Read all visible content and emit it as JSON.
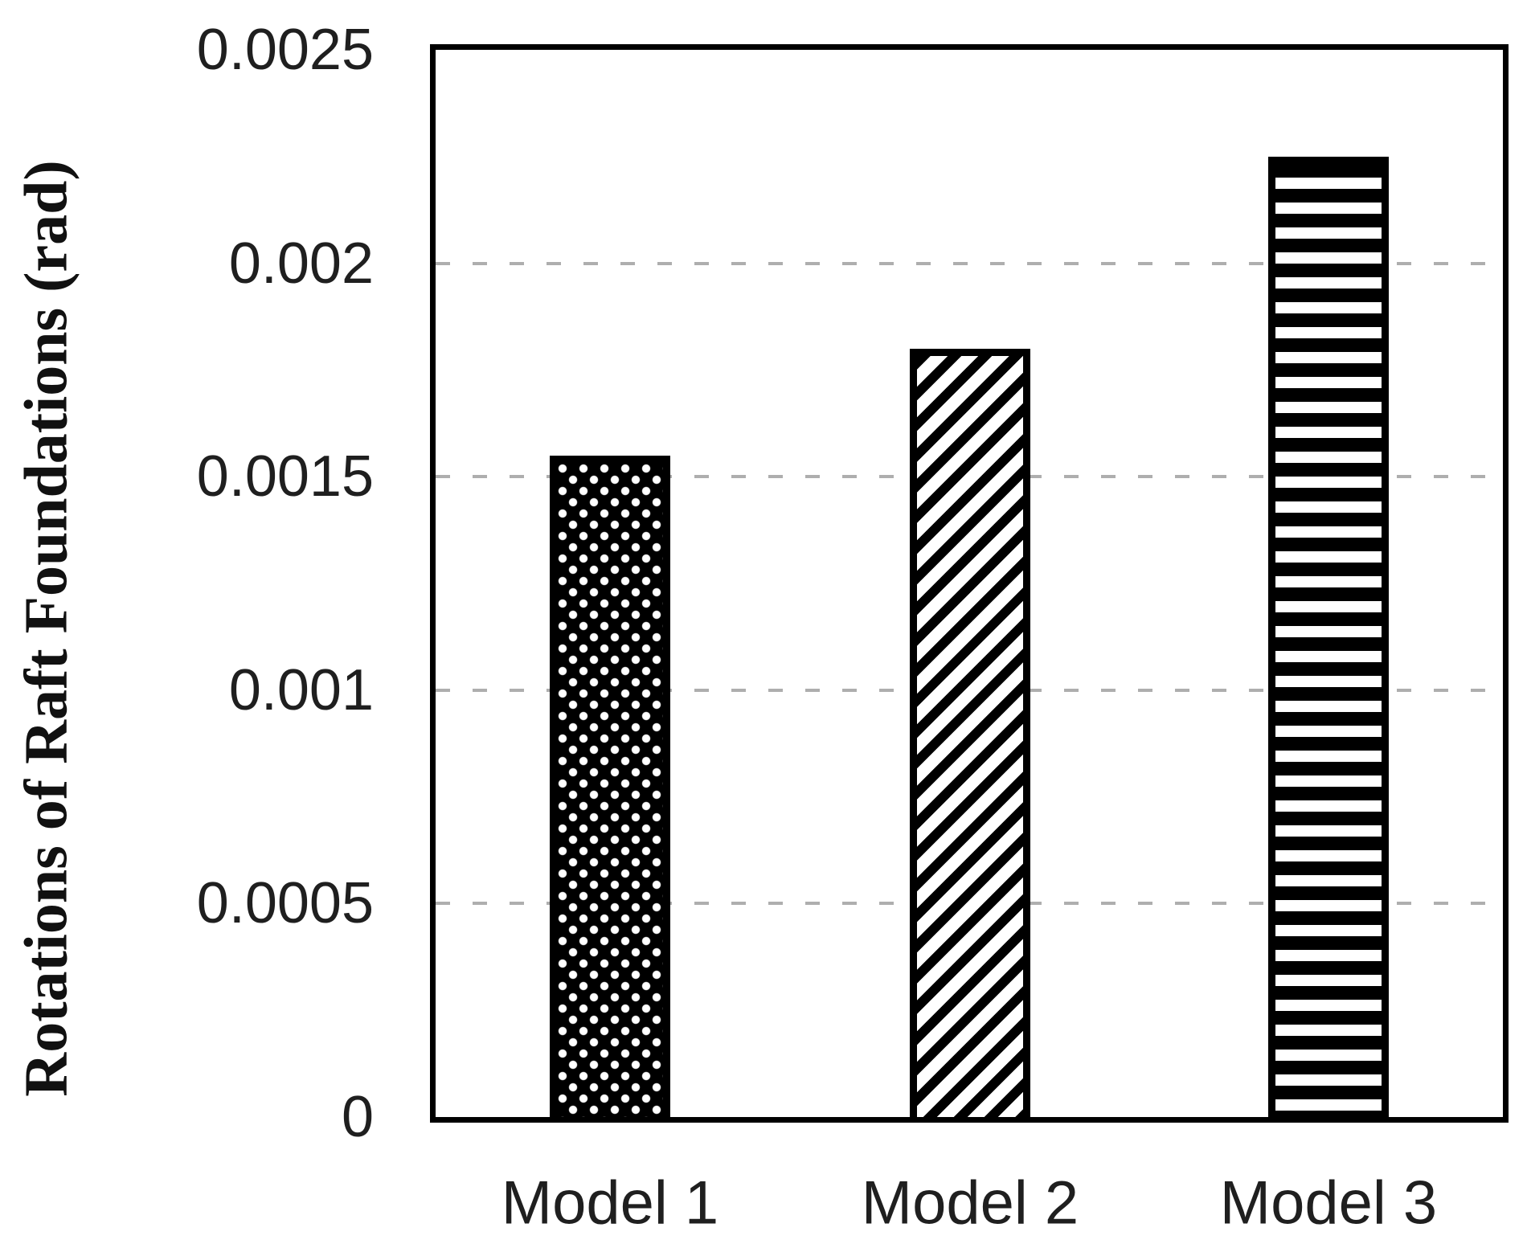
{
  "chart_data": {
    "type": "bar",
    "title": "",
    "xlabel": "",
    "ylabel": "Rotations of Raft Foundations (rad)",
    "categories": [
      "Model 1",
      "Model 2",
      "Model 3"
    ],
    "values": [
      0.00155,
      0.0018,
      0.00225
    ],
    "ylim": [
      0,
      0.0025
    ],
    "yticks": [
      0,
      0.0005,
      0.001,
      0.0015,
      0.002,
      0.0025
    ],
    "ytick_labels": [
      "0",
      "0.0005",
      "0.001",
      "0.0015",
      "0.002",
      "0.0025"
    ],
    "gridline_values": [
      0.0005,
      0.001,
      0.0015,
      0.002
    ],
    "grid": "dashed horizontal lines at every labeled tick except 0 and max",
    "legend": "none",
    "bar_patterns": [
      "white dots on black",
      "black diagonal stripes (bottom-left to top-right)",
      "black horizontal stripes"
    ],
    "colors": {
      "bar_foreground": "#000000",
      "plot_background": "#ffffff",
      "frame": "#000000",
      "gridline": "#aeaeae",
      "text": "#1f1f1f"
    }
  }
}
